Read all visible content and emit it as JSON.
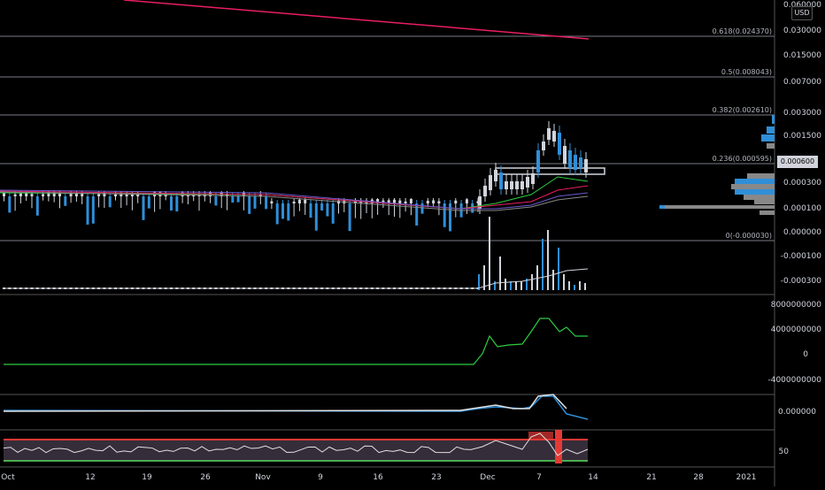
{
  "currency_button": "USD",
  "current_price": "0.000600",
  "fib_levels": [
    {
      "label": "0.618(0.024370)"
    },
    {
      "label": "0.5(0.008043)"
    },
    {
      "label": "0.382(0.002610)"
    },
    {
      "label": "0.236(0.000595)"
    },
    {
      "label": "0(-0.000030)"
    }
  ],
  "price_axis": {
    "main": [
      "0.060000",
      "0.030000",
      "0.015000",
      "0.007000",
      "0.003000",
      "0.001500",
      "0.000300",
      "0.000100",
      "0.000000",
      "-0.000100",
      "-0.000300"
    ],
    "pane2": [
      "8000000000",
      "4000000000",
      "0",
      "-4000000000"
    ],
    "pane3": [
      "0.000000"
    ],
    "pane4": [
      "50"
    ]
  },
  "time_axis": [
    "Oct",
    "12",
    "19",
    "26",
    "Nov",
    "9",
    "16",
    "23",
    "Dec",
    "7",
    "14",
    "21",
    "28",
    "2021"
  ],
  "colors": {
    "background": "#000000",
    "up_candle": "#d1d4dc",
    "down_candle": "#2f8fd8",
    "fib_line": "#787b86",
    "trend_line": "#e91e63",
    "green_line": "#2ecc40",
    "rsi_red": "#e53935",
    "rsi_green": "#4caf50"
  },
  "chart_data": [
    {
      "type": "line",
      "pane": "price",
      "scale": "log",
      "title": "",
      "series": [
        {
          "values": [
            5e-05,
            5e-05,
            5e-05,
            5e-05,
            5e-05,
            5e-05,
            4e-05,
            4e-05,
            3e-05,
            4e-05,
            0.0004,
            0.0003,
            0.0016,
            0.0012,
            0.0007,
            0.0006
          ]
        }
      ]
    },
    {
      "type": "line",
      "pane": "indicator-1",
      "series": [
        {
          "values": [
            -1000000000,
            -1000000000,
            -1000000000,
            -1000000000,
            -1000000000,
            -1000000000,
            -1000000000,
            -1000000000,
            1800000000,
            3400000000,
            3300000000,
            4200000000,
            6400000000,
            4600000000,
            2900000000,
            2800000000
          ]
        }
      ]
    },
    {
      "type": "line",
      "pane": "rsi",
      "series": [
        {
          "values": [
            50,
            52,
            48,
            53,
            49,
            51,
            50,
            52,
            49,
            55,
            60,
            72,
            68,
            55,
            52,
            50
          ]
        }
      ]
    }
  ]
}
